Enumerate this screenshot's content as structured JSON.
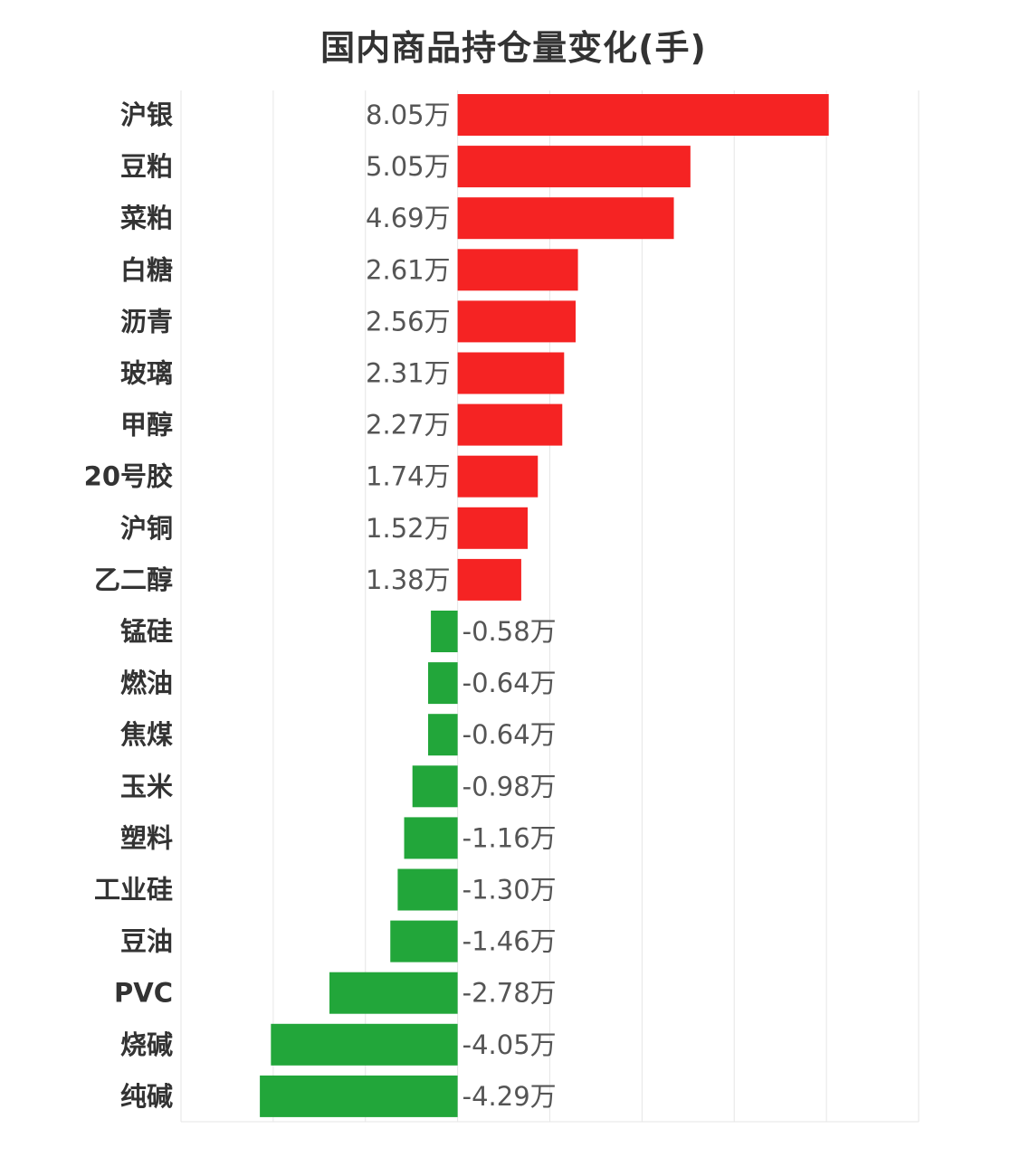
{
  "chart_data": {
    "type": "bar",
    "orientation": "horizontal",
    "title": "国内商品持仓量变化(手)",
    "unit": "万",
    "categories": [
      "沪银",
      "豆粕",
      "菜粕",
      "白糖",
      "沥青",
      "玻璃",
      "甲醇",
      "20号胶",
      "沪铜",
      "乙二醇",
      "锰硅",
      "燃油",
      "焦煤",
      "玉米",
      "塑料",
      "工业硅",
      "豆油",
      "PVC",
      "烧碱",
      "纯碱"
    ],
    "values": [
      8.05,
      5.05,
      4.69,
      2.61,
      2.56,
      2.31,
      2.27,
      1.74,
      1.52,
      1.38,
      -0.58,
      -0.64,
      -0.64,
      -0.98,
      -1.16,
      -1.3,
      -1.46,
      -2.78,
      -4.05,
      -4.29
    ],
    "labels": [
      "8.05万",
      "5.05万",
      "4.69万",
      "2.61万",
      "2.56万",
      "2.31万",
      "2.27万",
      "1.74万",
      "1.52万",
      "1.38万",
      "-0.58万",
      "-0.64万",
      "-0.64万",
      "-0.98万",
      "-1.16万",
      "-1.30万",
      "-1.46万",
      "-2.78万",
      "-4.05万",
      "-4.29万"
    ],
    "xlim": [
      -6,
      10
    ],
    "grid": true,
    "colors": {
      "positive": "#f52323",
      "negative": "#22a63a",
      "grid": "#e6e6e6"
    }
  }
}
